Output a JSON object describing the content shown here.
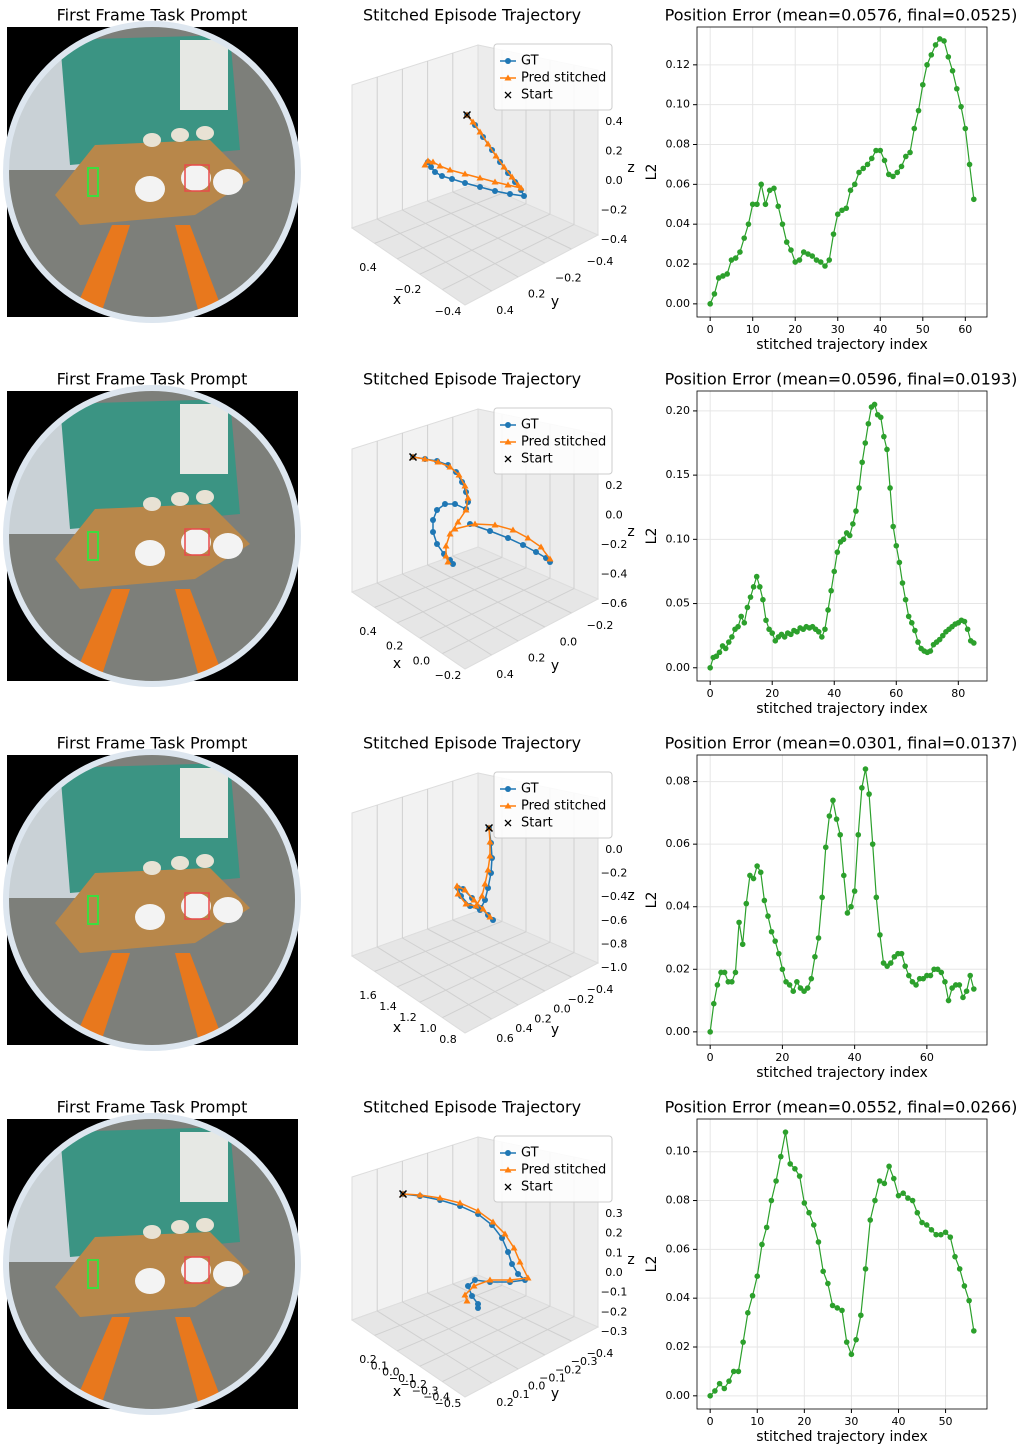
{
  "image_panels": [
    {
      "title": "First Frame Task Prompt"
    },
    {
      "title": "First Frame Task Prompt"
    },
    {
      "title": "First Frame Task Prompt"
    },
    {
      "title": "First Frame Task Prompt"
    }
  ],
  "trajectory_panels": [
    {
      "title": "Stitched Episode Trajectory",
      "legend": [
        "GT",
        "Pred stitched",
        "Start"
      ],
      "xlabel": "x",
      "ylabel": "y",
      "zlabel": "z",
      "xticks": [
        "0.4",
        "−0.2",
        "−0.4"
      ],
      "yticks": [
        "0.4",
        "0.2",
        "−0.2",
        "−0.4"
      ],
      "zticks": [
        "0.4",
        "0.2",
        "0.0",
        "−0.2",
        "−0.4"
      ]
    },
    {
      "title": "Stitched Episode Trajectory",
      "legend": [
        "GT",
        "Pred stitched",
        "Start"
      ],
      "xlabel": "x",
      "ylabel": "y",
      "zlabel": "z",
      "xticks": [
        "0.4",
        "0.2",
        "0.0",
        "−0.2"
      ],
      "yticks": [
        "0.4",
        "0.2",
        "0.0",
        "−0.2"
      ],
      "zticks": [
        "0.2",
        "0.0",
        "−0.2",
        "−0.4",
        "−0.6"
      ]
    },
    {
      "title": "Stitched Episode Trajectory",
      "legend": [
        "GT",
        "Pred stitched",
        "Start"
      ],
      "xlabel": "x",
      "ylabel": "y",
      "zlabel": "z",
      "xticks": [
        "1.6",
        "1.4",
        "1.2",
        "1.0",
        "0.8"
      ],
      "yticks": [
        "0.6",
        "0.4",
        "0.2",
        "0.0",
        "−0.2",
        "−0.4"
      ],
      "zticks": [
        "0.0",
        "−0.2",
        "−0.4",
        "−0.6",
        "−0.8",
        "−1.0"
      ]
    },
    {
      "title": "Stitched Episode Trajectory",
      "legend": [
        "GT",
        "Pred stitched",
        "Start"
      ],
      "xlabel": "x",
      "ylabel": "y",
      "zlabel": "z",
      "xticks": [
        "0.2",
        "0.1",
        "0.0",
        "−0.1",
        "−0.2",
        "−0.3",
        "−0.4",
        "−0.5"
      ],
      "yticks": [
        "0.2",
        "0.1",
        "0.0",
        "−0.1",
        "−0.2",
        "−0.3",
        "−0.4"
      ],
      "zticks": [
        "0.3",
        "0.2",
        "0.1",
        "0.0",
        "−0.1",
        "−0.2",
        "−0.3"
      ]
    }
  ],
  "chart_data": [
    {
      "type": "line",
      "title": "Position Error (mean=0.0576, final=0.0525)",
      "xlabel": "stitched trajectory index",
      "ylabel": "L2",
      "color": "#2ca02c",
      "grid": true,
      "xlim": [
        -3.1,
        65.1
      ],
      "xticks": [
        0,
        10,
        20,
        30,
        40,
        50,
        60
      ],
      "ylim": [
        -0.0066,
        0.139
      ],
      "yticks": [
        {
          "value": 0,
          "label": "0.00"
        },
        {
          "value": 0.02,
          "label": "0.02"
        },
        {
          "value": 0.04,
          "label": "0.04"
        },
        {
          "value": 0.06,
          "label": "0.06"
        },
        {
          "value": 0.08,
          "label": "0.08"
        },
        {
          "value": 0.1,
          "label": "0.10"
        },
        {
          "value": 0.12,
          "label": "0.12"
        }
      ],
      "x": [
        0,
        1,
        2,
        3,
        4,
        5,
        6,
        7,
        8,
        9,
        10,
        11,
        12,
        13,
        14,
        15,
        16,
        17,
        18,
        19,
        20,
        21,
        22,
        23,
        24,
        25,
        26,
        27,
        28,
        29,
        30,
        31,
        32,
        33,
        34,
        35,
        36,
        37,
        38,
        39,
        40,
        41,
        42,
        43,
        44,
        45,
        46,
        47,
        48,
        49,
        50,
        51,
        52,
        53,
        54,
        55,
        56,
        57,
        58,
        59,
        60,
        61,
        62
      ],
      "values": [
        0,
        0.005,
        0.013,
        0.014,
        0.015,
        0.022,
        0.023,
        0.026,
        0.033,
        0.04,
        0.05,
        0.05,
        0.06,
        0.05,
        0.057,
        0.058,
        0.049,
        0.04,
        0.031,
        0.027,
        0.021,
        0.022,
        0.026,
        0.025,
        0.024,
        0.022,
        0.021,
        0.019,
        0.022,
        0.035,
        0.045,
        0.047,
        0.048,
        0.057,
        0.06,
        0.066,
        0.068,
        0.07,
        0.073,
        0.077,
        0.077,
        0.072,
        0.065,
        0.064,
        0.066,
        0.069,
        0.074,
        0.076,
        0.088,
        0.097,
        0.11,
        0.12,
        0.125,
        0.13,
        0.133,
        0.132,
        0.124,
        0.117,
        0.108,
        0.099,
        0.088,
        0.07,
        0.0525
      ]
    },
    {
      "type": "line",
      "title": "Position Error (mean=0.0596, final=0.0193)",
      "xlabel": "stitched trajectory index",
      "ylabel": "L2",
      "color": "#2ca02c",
      "grid": true,
      "xlim": [
        -4.25,
        89.25
      ],
      "xticks": [
        0,
        20,
        40,
        60,
        80
      ],
      "ylim": [
        -0.0103,
        0.2155
      ],
      "yticks": [
        {
          "value": 0,
          "label": "0.00"
        },
        {
          "value": 0.05,
          "label": "0.05"
        },
        {
          "value": 0.1,
          "label": "0.10"
        },
        {
          "value": 0.15,
          "label": "0.15"
        },
        {
          "value": 0.2,
          "label": "0.20"
        }
      ],
      "x": [
        0,
        1,
        2,
        3,
        4,
        5,
        6,
        7,
        8,
        9,
        10,
        11,
        12,
        13,
        14,
        15,
        16,
        17,
        18,
        19,
        20,
        21,
        22,
        23,
        24,
        25,
        26,
        27,
        28,
        29,
        30,
        31,
        32,
        33,
        34,
        35,
        36,
        37,
        38,
        39,
        40,
        41,
        42,
        43,
        44,
        45,
        46,
        47,
        48,
        49,
        50,
        51,
        52,
        53,
        54,
        55,
        56,
        57,
        58,
        59,
        60,
        61,
        62,
        63,
        64,
        65,
        66,
        67,
        68,
        69,
        70,
        71,
        72,
        73,
        74,
        75,
        76,
        77,
        78,
        79,
        80,
        81,
        82,
        83,
        84,
        85
      ],
      "values": [
        0,
        0.008,
        0.009,
        0.012,
        0.017,
        0.015,
        0.02,
        0.024,
        0.03,
        0.032,
        0.04,
        0.035,
        0.047,
        0.055,
        0.063,
        0.071,
        0.063,
        0.053,
        0.037,
        0.03,
        0.027,
        0.021,
        0.024,
        0.026,
        0.024,
        0.027,
        0.026,
        0.029,
        0.028,
        0.031,
        0.03,
        0.032,
        0.031,
        0.032,
        0.03,
        0.028,
        0.024,
        0.03,
        0.045,
        0.06,
        0.075,
        0.09,
        0.098,
        0.1,
        0.105,
        0.103,
        0.112,
        0.122,
        0.14,
        0.16,
        0.175,
        0.19,
        0.203,
        0.205,
        0.197,
        0.195,
        0.18,
        0.17,
        0.14,
        0.11,
        0.095,
        0.082,
        0.066,
        0.053,
        0.04,
        0.035,
        0.029,
        0.02,
        0.015,
        0.013,
        0.012,
        0.013,
        0.018,
        0.02,
        0.022,
        0.025,
        0.028,
        0.03,
        0.032,
        0.034,
        0.035,
        0.037,
        0.036,
        0.03,
        0.021,
        0.0193
      ]
    },
    {
      "type": "line",
      "title": "Position Error (mean=0.0301, final=0.0137)",
      "xlabel": "stitched trajectory index",
      "ylabel": "L2",
      "color": "#2ca02c",
      "grid": true,
      "xlim": [
        -3.65,
        76.65
      ],
      "xticks": [
        0,
        20,
        40,
        60
      ],
      "ylim": [
        -0.0042,
        0.0885
      ],
      "yticks": [
        {
          "value": 0,
          "label": "0.00"
        },
        {
          "value": 0.02,
          "label": "0.02"
        },
        {
          "value": 0.04,
          "label": "0.04"
        },
        {
          "value": 0.06,
          "label": "0.06"
        },
        {
          "value": 0.08,
          "label": "0.08"
        }
      ],
      "x": [
        0,
        1,
        2,
        3,
        4,
        5,
        6,
        7,
        8,
        9,
        10,
        11,
        12,
        13,
        14,
        15,
        16,
        17,
        18,
        19,
        20,
        21,
        22,
        23,
        24,
        25,
        26,
        27,
        28,
        29,
        30,
        31,
        32,
        33,
        34,
        35,
        36,
        37,
        38,
        39,
        40,
        41,
        42,
        43,
        44,
        45,
        46,
        47,
        48,
        49,
        50,
        51,
        52,
        53,
        54,
        55,
        56,
        57,
        58,
        59,
        60,
        61,
        62,
        63,
        64,
        65,
        66,
        67,
        68,
        69,
        70,
        71,
        72,
        73
      ],
      "values": [
        0,
        0.009,
        0.015,
        0.019,
        0.019,
        0.016,
        0.016,
        0.019,
        0.035,
        0.028,
        0.041,
        0.05,
        0.049,
        0.053,
        0.051,
        0.042,
        0.037,
        0.032,
        0.029,
        0.025,
        0.02,
        0.016,
        0.015,
        0.013,
        0.016,
        0.014,
        0.013,
        0.014,
        0.017,
        0.024,
        0.03,
        0.043,
        0.059,
        0.069,
        0.074,
        0.068,
        0.063,
        0.05,
        0.038,
        0.04,
        0.045,
        0.063,
        0.078,
        0.084,
        0.076,
        0.06,
        0.043,
        0.031,
        0.022,
        0.021,
        0.022,
        0.024,
        0.025,
        0.025,
        0.021,
        0.018,
        0.016,
        0.015,
        0.017,
        0.017,
        0.018,
        0.018,
        0.02,
        0.02,
        0.019,
        0.016,
        0.01,
        0.014,
        0.015,
        0.015,
        0.011,
        0.013,
        0.018,
        0.0137
      ]
    },
    {
      "type": "line",
      "title": "Position Error (mean=0.0552, final=0.0266)",
      "xlabel": "stitched trajectory index",
      "ylabel": "L2",
      "color": "#2ca02c",
      "grid": true,
      "xlim": [
        -2.8,
        58.8
      ],
      "xticks": [
        0,
        10,
        20,
        30,
        40,
        50
      ],
      "ylim": [
        -0.0054,
        0.1134
      ],
      "yticks": [
        {
          "value": 0,
          "label": "0.00"
        },
        {
          "value": 0.02,
          "label": "0.02"
        },
        {
          "value": 0.04,
          "label": "0.04"
        },
        {
          "value": 0.06,
          "label": "0.06"
        },
        {
          "value": 0.08,
          "label": "0.08"
        },
        {
          "value": 0.1,
          "label": "0.10"
        }
      ],
      "x": [
        0,
        1,
        2,
        3,
        4,
        5,
        6,
        7,
        8,
        9,
        10,
        11,
        12,
        13,
        14,
        15,
        16,
        17,
        18,
        19,
        20,
        21,
        22,
        23,
        24,
        25,
        26,
        27,
        28,
        29,
        30,
        31,
        32,
        33,
        34,
        35,
        36,
        37,
        38,
        39,
        40,
        41,
        42,
        43,
        44,
        45,
        46,
        47,
        48,
        49,
        50,
        51,
        52,
        53,
        54,
        55,
        56
      ],
      "values": [
        0,
        0.002,
        0.005,
        0.003,
        0.006,
        0.01,
        0.01,
        0.022,
        0.034,
        0.041,
        0.049,
        0.062,
        0.069,
        0.08,
        0.088,
        0.098,
        0.108,
        0.095,
        0.093,
        0.09,
        0.079,
        0.075,
        0.07,
        0.063,
        0.051,
        0.046,
        0.037,
        0.036,
        0.035,
        0.022,
        0.017,
        0.023,
        0.033,
        0.052,
        0.072,
        0.08,
        0.088,
        0.087,
        0.094,
        0.089,
        0.082,
        0.083,
        0.081,
        0.08,
        0.075,
        0.071,
        0.07,
        0.068,
        0.066,
        0.066,
        0.067,
        0.065,
        0.057,
        0.052,
        0.045,
        0.039,
        0.0266
      ]
    }
  ]
}
